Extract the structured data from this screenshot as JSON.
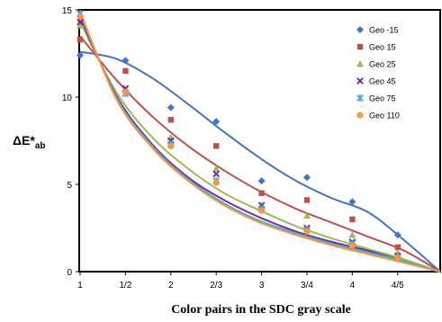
{
  "chart_data": {
    "type": "scatter",
    "xlabel": "Color pairs in the SDC gray scale",
    "ylabel_main": "ΔE*",
    "ylabel_sub": "ab",
    "x_ticks": [
      "1",
      "1/2",
      "2",
      "2/3",
      "3",
      "3/4",
      "4",
      "4/5"
    ],
    "ylim": [
      0,
      15
    ],
    "y_ticks": [
      "0",
      "5",
      "10",
      "15"
    ],
    "grid": false,
    "legend_position": "top-right",
    "series": [
      {
        "name": "Geo -15",
        "marker": "diamond",
        "color": "#4472C4",
        "values": [
          12.4,
          12.1,
          9.4,
          8.6,
          5.2,
          5.4,
          4.0,
          2.1
        ],
        "curve": [
          12.6,
          12.2,
          11.1,
          9.6,
          8.0,
          6.5,
          5.2,
          4.2,
          3.4,
          1.8,
          0.0
        ]
      },
      {
        "name": "Geo 15",
        "marker": "square",
        "color": "#C0504D",
        "values": [
          13.3,
          11.5,
          8.7,
          7.2,
          4.5,
          4.1,
          3.0,
          1.4
        ],
        "curve": [
          13.5,
          11.0,
          8.9,
          7.2,
          5.8,
          4.6,
          3.6,
          2.8,
          2.0,
          1.2,
          0.0
        ]
      },
      {
        "name": "Geo 25",
        "marker": "triangle",
        "color": "#9BBB59",
        "values": [
          14.1,
          10.4,
          7.7,
          5.9,
          3.8,
          3.2,
          2.1,
          1.1
        ],
        "curve": [
          14.3,
          10.3,
          7.7,
          5.9,
          4.5,
          3.5,
          2.6,
          1.9,
          1.3,
          0.7,
          0.0
        ]
      },
      {
        "name": "Geo 45",
        "marker": "x",
        "color": "#7030A0",
        "values": [
          14.3,
          10.5,
          7.5,
          5.6,
          3.8,
          2.5,
          1.7,
          0.9
        ],
        "curve": [
          14.6,
          10.1,
          7.3,
          5.4,
          4.1,
          3.1,
          2.3,
          1.7,
          1.2,
          0.6,
          0.0
        ]
      },
      {
        "name": "Geo 75",
        "marker": "star",
        "color": "#4BACC6",
        "values": [
          14.8,
          10.2,
          7.3,
          5.2,
          3.6,
          2.4,
          1.6,
          0.8
        ],
        "curve": [
          14.8,
          10.0,
          7.2,
          5.3,
          3.9,
          2.9,
          2.2,
          1.6,
          1.1,
          0.6,
          0.0
        ]
      },
      {
        "name": "Geo 110",
        "marker": "circle",
        "color": "#F79646",
        "values": [
          14.6,
          10.3,
          7.2,
          5.1,
          3.5,
          2.3,
          1.5,
          0.8
        ],
        "curve": [
          14.9,
          9.9,
          7.1,
          5.2,
          3.8,
          2.8,
          2.1,
          1.5,
          1.0,
          0.5,
          0.0
        ]
      }
    ]
  }
}
